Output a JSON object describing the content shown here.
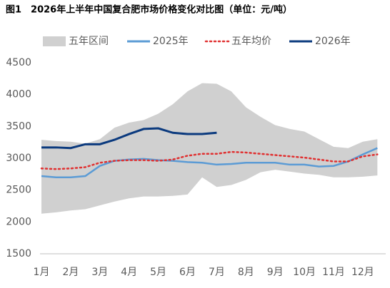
{
  "chart_data": {
    "type": "line",
    "title": "图1　2026年上半年中国复合肥市场价格变化对比图（单位：元/吨）",
    "categories": [
      "1月",
      null,
      "2月",
      null,
      "3月",
      null,
      "4月",
      null,
      "5月",
      null,
      "6月",
      null,
      "7月",
      null,
      "8月",
      null,
      "9月",
      null,
      "10月",
      null,
      "11月",
      null,
      "12月",
      null
    ],
    "ylim": [
      1500,
      4500
    ],
    "yticks": [
      1500,
      2000,
      2500,
      3000,
      3500,
      4000,
      4500
    ],
    "series": [
      {
        "name": "五年区间",
        "type": "band",
        "color": "#d0d0d0",
        "high": [
          3290,
          3270,
          3260,
          3230,
          3300,
          3480,
          3560,
          3600,
          3700,
          3850,
          4050,
          4180,
          4170,
          4050,
          3800,
          3650,
          3520,
          3460,
          3420,
          3300,
          3180,
          3160,
          3260,
          3300
        ],
        "low": [
          2130,
          2150,
          2180,
          2200,
          2260,
          2320,
          2370,
          2400,
          2400,
          2410,
          2430,
          2700,
          2550,
          2580,
          2660,
          2780,
          2820,
          2790,
          2760,
          2740,
          2700,
          2700,
          2710,
          2730
        ]
      },
      {
        "name": "2025年",
        "type": "solid",
        "color": "#5b9bd5",
        "values": [
          2720,
          2700,
          2700,
          2720,
          2880,
          2960,
          2980,
          2990,
          2970,
          2960,
          2940,
          2930,
          2900,
          2910,
          2930,
          2930,
          2930,
          2900,
          2900,
          2870,
          2880,
          2950,
          3060,
          3160
        ]
      },
      {
        "name": "五年均价",
        "type": "dotted",
        "color": "#e03030",
        "values": [
          2840,
          2830,
          2840,
          2860,
          2930,
          2960,
          2970,
          2970,
          2960,
          2980,
          3040,
          3070,
          3070,
          3100,
          3090,
          3070,
          3050,
          3030,
          3010,
          2980,
          2950,
          2950,
          3030,
          3060
        ]
      },
      {
        "name": "2026年",
        "type": "solid",
        "color": "#0b3a7e",
        "values": [
          3170,
          3170,
          3160,
          3220,
          3220,
          3290,
          3380,
          3460,
          3470,
          3400,
          3380,
          3380,
          3400,
          null,
          null,
          null,
          null,
          null,
          null,
          null,
          null,
          null,
          null,
          null
        ]
      }
    ]
  }
}
